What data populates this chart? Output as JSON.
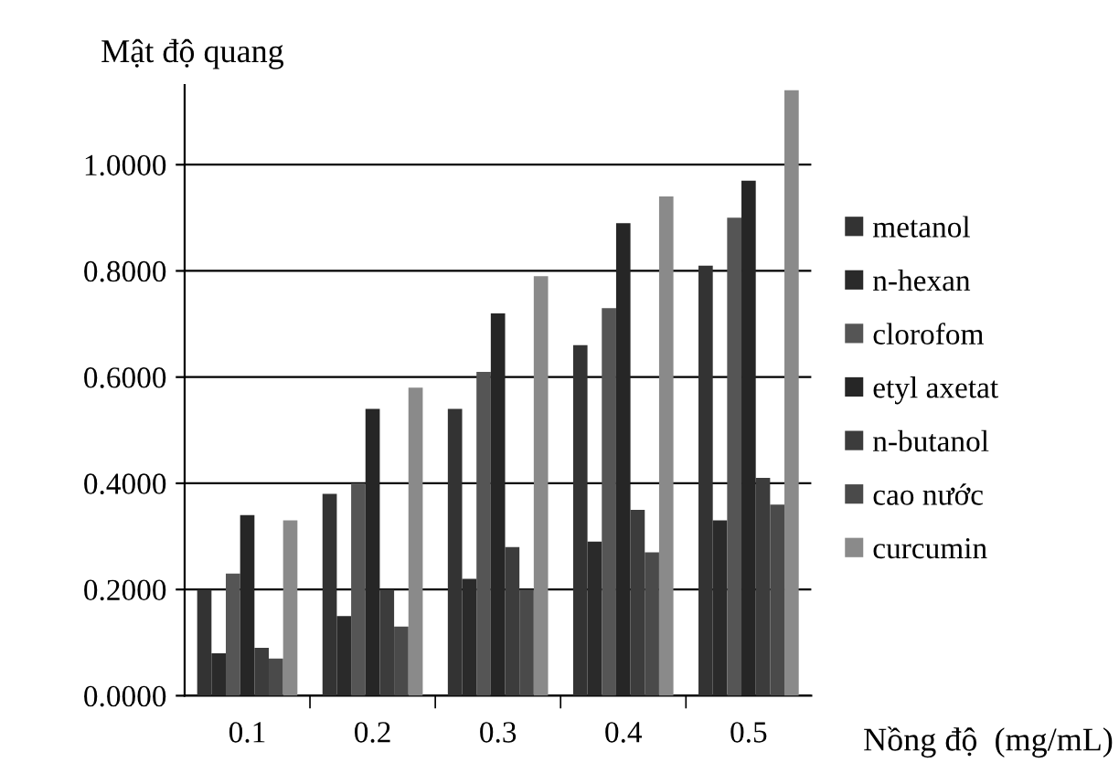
{
  "chart_data": {
    "type": "bar",
    "ylabel": "Mật độ quang",
    "xlabel": "Nồng độ  (mg/mL)",
    "categories": [
      "0.1",
      "0.2",
      "0.3",
      "0.4",
      "0.5"
    ],
    "series": [
      {
        "name": "metanol",
        "color": "#333333",
        "values": [
          0.2,
          0.38,
          0.54,
          0.66,
          0.81
        ]
      },
      {
        "name": "n-hexan",
        "color": "#2a2a2a",
        "values": [
          0.08,
          0.15,
          0.22,
          0.29,
          0.33
        ]
      },
      {
        "name": "clorofom",
        "color": "#555555",
        "values": [
          0.23,
          0.4,
          0.61,
          0.73,
          0.9
        ]
      },
      {
        "name": "etyl axetat",
        "color": "#262626",
        "values": [
          0.34,
          0.54,
          0.72,
          0.89,
          0.97
        ]
      },
      {
        "name": "n-butanol",
        "color": "#3c3c3c",
        "values": [
          0.09,
          0.2,
          0.28,
          0.35,
          0.41
        ]
      },
      {
        "name": "cao nước",
        "color": "#4a4a4a",
        "values": [
          0.07,
          0.13,
          0.2,
          0.27,
          0.36
        ]
      },
      {
        "name": "curcumin",
        "color": "#8a8a8a",
        "values": [
          0.33,
          0.58,
          0.79,
          0.94,
          1.14
        ]
      }
    ],
    "ylim": [
      0,
      1.15
    ],
    "yticks": [
      {
        "value": 0,
        "label": "0.0000"
      },
      {
        "value": 0.2,
        "label": "0.2000"
      },
      {
        "value": 0.4,
        "label": "0.4000"
      },
      {
        "value": 0.6,
        "label": "0.6000"
      },
      {
        "value": 0.8,
        "label": "0.8000"
      },
      {
        "value": 1.0,
        "label": "1.0000"
      }
    ],
    "grid": "y",
    "legend": "right"
  }
}
